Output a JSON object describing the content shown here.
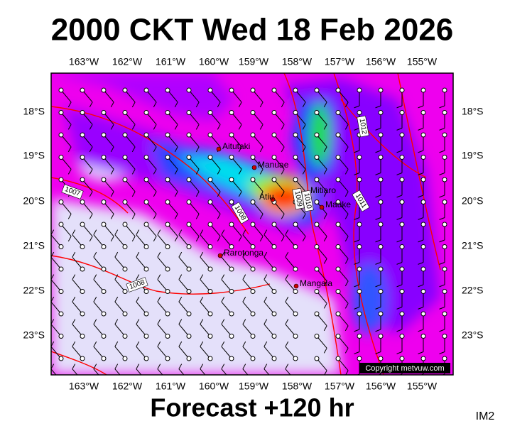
{
  "header": {
    "title": "2000 CKT Wed 18 Feb 2026"
  },
  "footer": {
    "forecast": "Forecast +120 hr",
    "image_id": "IM2"
  },
  "map": {
    "longitude_labels": [
      "163°W",
      "162°W",
      "161°W",
      "160°W",
      "159°W",
      "158°W",
      "157°W",
      "156°W",
      "155°W"
    ],
    "latitude_labels": [
      "18°S",
      "19°S",
      "20°S",
      "21°S",
      "22°S",
      "23°S"
    ],
    "places": [
      "Aitutaki",
      "Manuae",
      "Atiu",
      "Mitiaro",
      "Mauke",
      "Rarotonga",
      "Mangaia"
    ],
    "isobar_labels": [
      "1012",
      "1011",
      "1010",
      "1009",
      "1008",
      "1007",
      "1008"
    ],
    "copyright": "Copyright metvuw.com"
  }
}
